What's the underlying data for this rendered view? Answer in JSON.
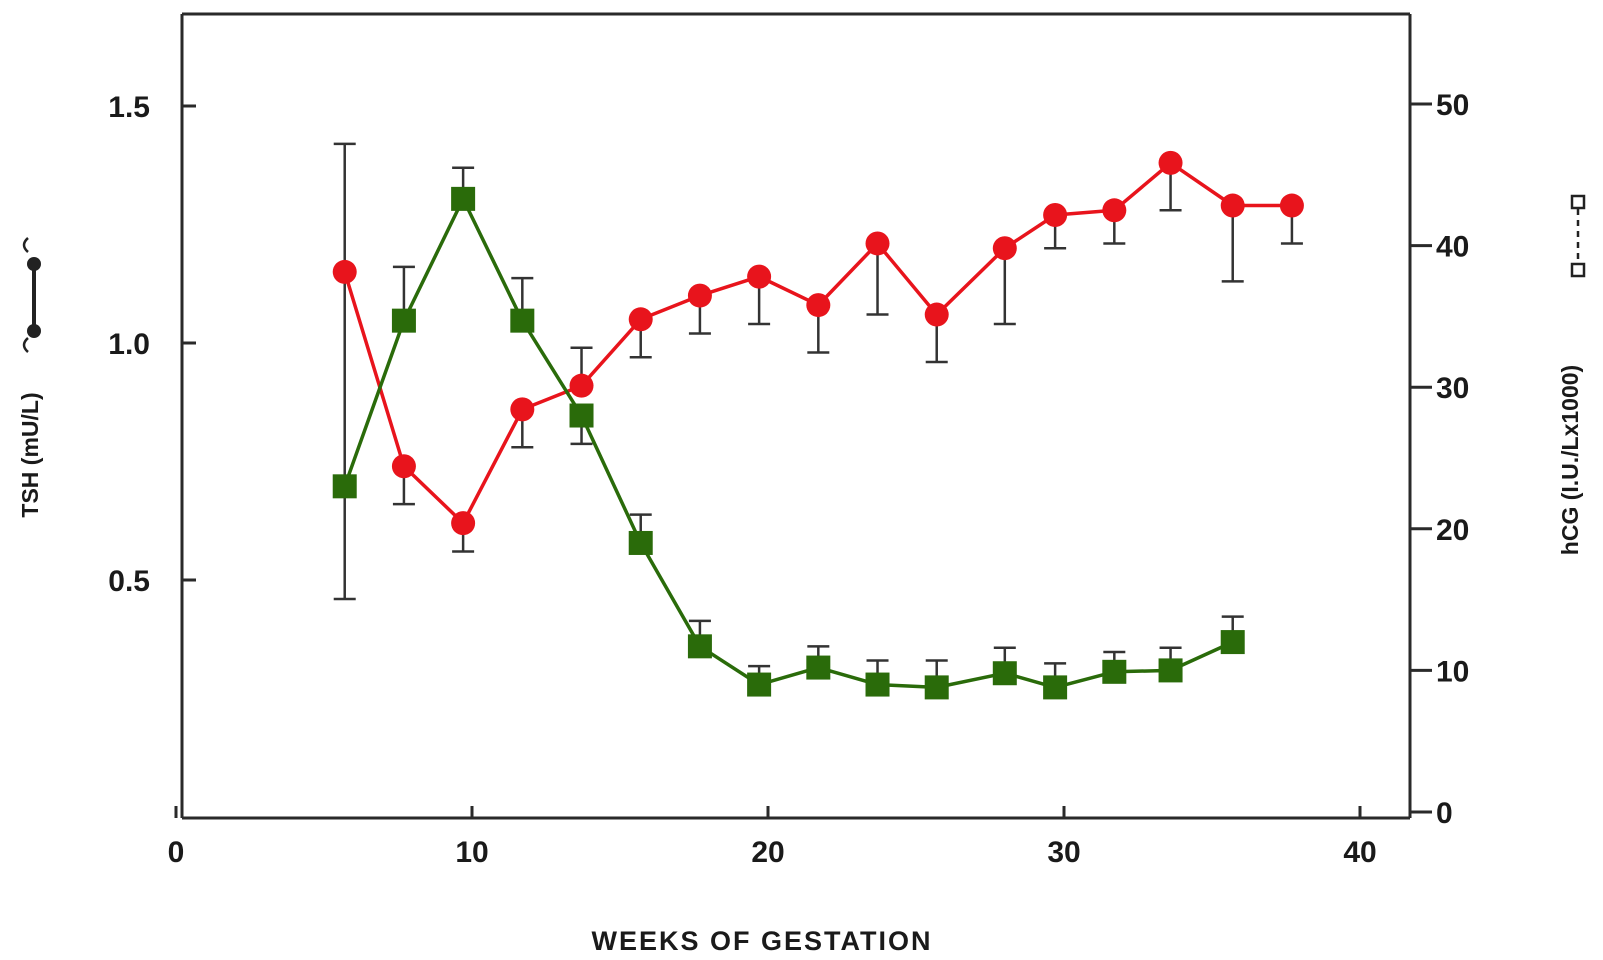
{
  "chart_data": {
    "type": "line",
    "xlabel": "WEEKS OF GESTATION",
    "ylabel_left": "TSH (mU/L)",
    "ylabel_right": "hCG (I.U./Lx1000)",
    "xlim": [
      0,
      42
    ],
    "ylim_left": [
      0,
      1.7
    ],
    "ylim_right": [
      0,
      55
    ],
    "x_ticks": [
      0,
      10,
      20,
      30,
      40
    ],
    "x_tick_labels": [
      "0",
      "10",
      "20",
      "30",
      "40"
    ],
    "y_left_ticks": [
      0.5,
      1.0,
      1.5
    ],
    "y_left_tick_labels": [
      "0.5",
      "1.0",
      "1.5"
    ],
    "y_right_ticks": [
      0,
      10,
      20,
      30,
      40,
      50
    ],
    "y_right_tick_labels": [
      "0",
      "10",
      "20",
      "30",
      "40",
      "50"
    ],
    "grid": false,
    "series": [
      {
        "axis": "left",
        "marker": "circle",
        "color": "#e8141c",
        "points": [
          {
            "x": 5.7,
            "y": 1.15,
            "err_low": 0.46,
            "err_high": 1.42
          },
          {
            "x": 7.7,
            "y": 0.74,
            "err_low": 0.66
          },
          {
            "x": 9.7,
            "y": 0.62,
            "err_low": 0.56
          },
          {
            "x": 11.7,
            "y": 0.86,
            "err_low": 0.78
          },
          {
            "x": 13.7,
            "y": 0.91,
            "err_high": 0.99
          },
          {
            "x": 15.7,
            "y": 1.05,
            "err_low": 0.97
          },
          {
            "x": 17.7,
            "y": 1.1,
            "err_low": 1.02
          },
          {
            "x": 19.7,
            "y": 1.14,
            "err_low": 1.04
          },
          {
            "x": 21.7,
            "y": 1.08,
            "err_low": 0.98
          },
          {
            "x": 23.7,
            "y": 1.21,
            "err_low": 1.06
          },
          {
            "x": 25.7,
            "y": 1.06,
            "err_low": 0.96
          },
          {
            "x": 28.0,
            "y": 1.2,
            "err_low": 1.04
          },
          {
            "x": 29.7,
            "y": 1.27,
            "err_low": 1.2
          },
          {
            "x": 31.7,
            "y": 1.28,
            "err_low": 1.21
          },
          {
            "x": 33.6,
            "y": 1.38,
            "err_low": 1.28
          },
          {
            "x": 35.7,
            "y": 1.29,
            "err_low": 1.13
          },
          {
            "x": 37.7,
            "y": 1.29,
            "err_low": 1.21
          }
        ]
      },
      {
        "axis": "right",
        "marker": "square",
        "color": "#2a6b0a",
        "points": [
          {
            "x": 5.7,
            "y": 23
          },
          {
            "x": 7.7,
            "y": 34.7,
            "err_high": 38.5
          },
          {
            "x": 9.7,
            "y": 43.3,
            "err_high": 45.5
          },
          {
            "x": 11.7,
            "y": 34.7,
            "err_high": 37.7
          },
          {
            "x": 13.7,
            "y": 28,
            "err_low": 26
          },
          {
            "x": 15.7,
            "y": 19,
            "err_high": 21
          },
          {
            "x": 17.7,
            "y": 11.7,
            "err_high": 13.5
          },
          {
            "x": 19.7,
            "y": 9,
            "err_high": 10.3
          },
          {
            "x": 21.7,
            "y": 10.2,
            "err_high": 11.7
          },
          {
            "x": 23.7,
            "y": 9,
            "err_high": 10.7
          },
          {
            "x": 25.7,
            "y": 8.8,
            "err_high": 10.7
          },
          {
            "x": 28.0,
            "y": 9.8,
            "err_high": 11.6
          },
          {
            "x": 29.7,
            "y": 8.8,
            "err_high": 10.5
          },
          {
            "x": 31.7,
            "y": 9.9,
            "err_high": 11.3
          },
          {
            "x": 33.6,
            "y": 10,
            "err_high": 11.6
          },
          {
            "x": 35.7,
            "y": 12,
            "err_high": 13.8
          }
        ]
      }
    ]
  }
}
